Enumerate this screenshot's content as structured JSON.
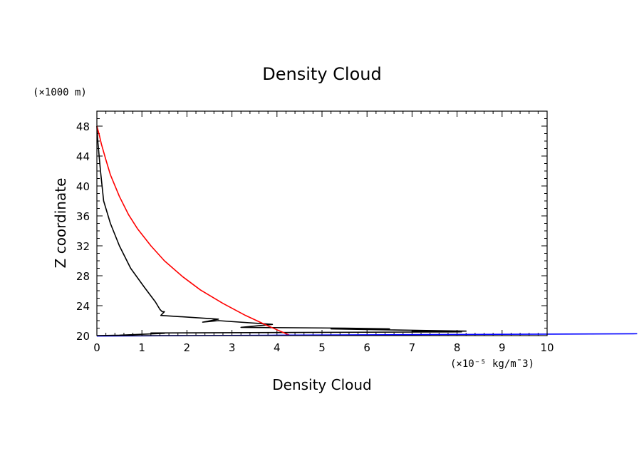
{
  "chart_data": {
    "type": "line",
    "title": "Density Cloud",
    "xlabel": "Density Cloud",
    "ylabel": "Z coordinate",
    "x_unit": "(×10⁻⁵ kg/m¯3)",
    "y_unit": "(×1000 m)",
    "xlim": [
      0,
      10
    ],
    "ylim": [
      20,
      50
    ],
    "x_ticks": [
      "0",
      "1",
      "2",
      "3",
      "4",
      "5",
      "6",
      "7",
      "8",
      "9",
      "10"
    ],
    "y_ticks": [
      "20",
      "24",
      "28",
      "32",
      "36",
      "40",
      "44",
      "48"
    ],
    "grid": false,
    "series": [
      {
        "color": "#000000",
        "x": [
          0.0,
          0.02,
          0.08,
          0.15,
          0.3,
          0.5,
          0.75,
          1.05,
          1.3,
          1.4,
          1.45,
          1.5,
          1.42,
          2.7,
          2.35,
          2.7,
          3.9,
          3.2,
          5.5,
          6.5,
          5.2,
          8.2,
          7.0,
          8.1,
          1.2,
          1.5,
          0.5,
          0.0
        ],
        "y": [
          48.0,
          46.0,
          42.0,
          38.0,
          35.0,
          32.0,
          29.0,
          26.5,
          24.5,
          23.5,
          23.2,
          23.2,
          22.7,
          22.2,
          21.8,
          22.0,
          21.5,
          21.1,
          21.0,
          20.9,
          20.9,
          20.6,
          20.55,
          20.5,
          20.35,
          20.3,
          20.05,
          20.0
        ]
      },
      {
        "color": "#ff0000",
        "x": [
          0.0,
          0.05,
          0.1,
          0.2,
          0.3,
          0.5,
          0.7,
          0.9,
          1.2,
          1.5,
          1.9,
          2.3,
          2.8,
          3.3,
          3.8,
          4.3
        ],
        "y": [
          48.0,
          46.9,
          45.6,
          43.5,
          41.5,
          38.6,
          36.2,
          34.3,
          32.0,
          30.0,
          27.9,
          26.1,
          24.3,
          22.7,
          21.3,
          20.0
        ]
      },
      {
        "color": "#0000ff",
        "x": [
          0.0,
          2.0,
          4.0,
          6.0,
          8.0,
          10.0,
          12.0
        ],
        "y": [
          19.95,
          20.0,
          20.05,
          20.1,
          20.15,
          20.2,
          20.25
        ]
      }
    ]
  }
}
